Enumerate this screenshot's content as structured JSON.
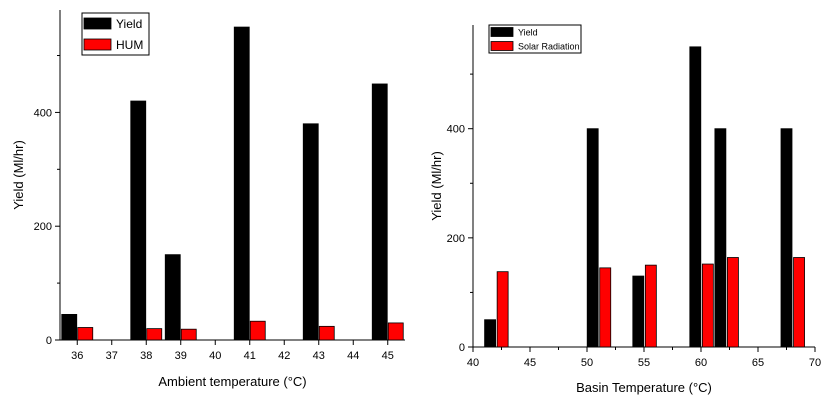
{
  "chart_data": [
    {
      "type": "bar",
      "title": "",
      "xlabel": "Ambient temperature (°C)",
      "ylabel": "Yield (Ml/hr)",
      "x_ticks": [
        "36",
        "37",
        "38",
        "39",
        "40",
        "41",
        "42",
        "43",
        "44",
        "45"
      ],
      "ylim": [
        0,
        580
      ],
      "y_ticks": [
        "0",
        "200",
        "400"
      ],
      "legend": {
        "position": "top-left"
      },
      "series": [
        {
          "name": "Yield",
          "color": "#000000",
          "points": [
            {
              "x": 36,
              "y": 45
            },
            {
              "x": 38,
              "y": 420
            },
            {
              "x": 39,
              "y": 150
            },
            {
              "x": 41,
              "y": 550
            },
            {
              "x": 43,
              "y": 380
            },
            {
              "x": 45,
              "y": 450
            }
          ]
        },
        {
          "name": "HUM",
          "color": "#ff0000",
          "points": [
            {
              "x": 36,
              "y": 22
            },
            {
              "x": 38,
              "y": 20
            },
            {
              "x": 39,
              "y": 19
            },
            {
              "x": 41,
              "y": 33
            },
            {
              "x": 43,
              "y": 24
            },
            {
              "x": 45,
              "y": 30
            }
          ]
        }
      ]
    },
    {
      "type": "bar",
      "title": "",
      "xlabel": "Basin Temperature (°C)",
      "ylabel": "Yield (Ml/hr)",
      "x_ticks": [
        "40",
        "45",
        "50",
        "55",
        "60",
        "65",
        "70"
      ],
      "xlim": [
        40,
        70
      ],
      "ylim": [
        0,
        590
      ],
      "y_ticks": [
        "0",
        "200",
        "400"
      ],
      "legend": {
        "position": "top-left"
      },
      "series": [
        {
          "name": "Yield",
          "color": "#000000",
          "points": [
            {
              "x": 41.5,
              "y": 50
            },
            {
              "x": 50.5,
              "y": 400
            },
            {
              "x": 54.5,
              "y": 130
            },
            {
              "x": 59.5,
              "y": 550
            },
            {
              "x": 61.7,
              "y": 400
            },
            {
              "x": 67.5,
              "y": 400
            }
          ]
        },
        {
          "name": "Solar Radiation",
          "color": "#ff0000",
          "points": [
            {
              "x": 42.6,
              "y": 138
            },
            {
              "x": 51.6,
              "y": 145
            },
            {
              "x": 55.6,
              "y": 150
            },
            {
              "x": 60.6,
              "y": 152
            },
            {
              "x": 62.8,
              "y": 164
            },
            {
              "x": 68.6,
              "y": 164
            }
          ]
        }
      ]
    }
  ]
}
